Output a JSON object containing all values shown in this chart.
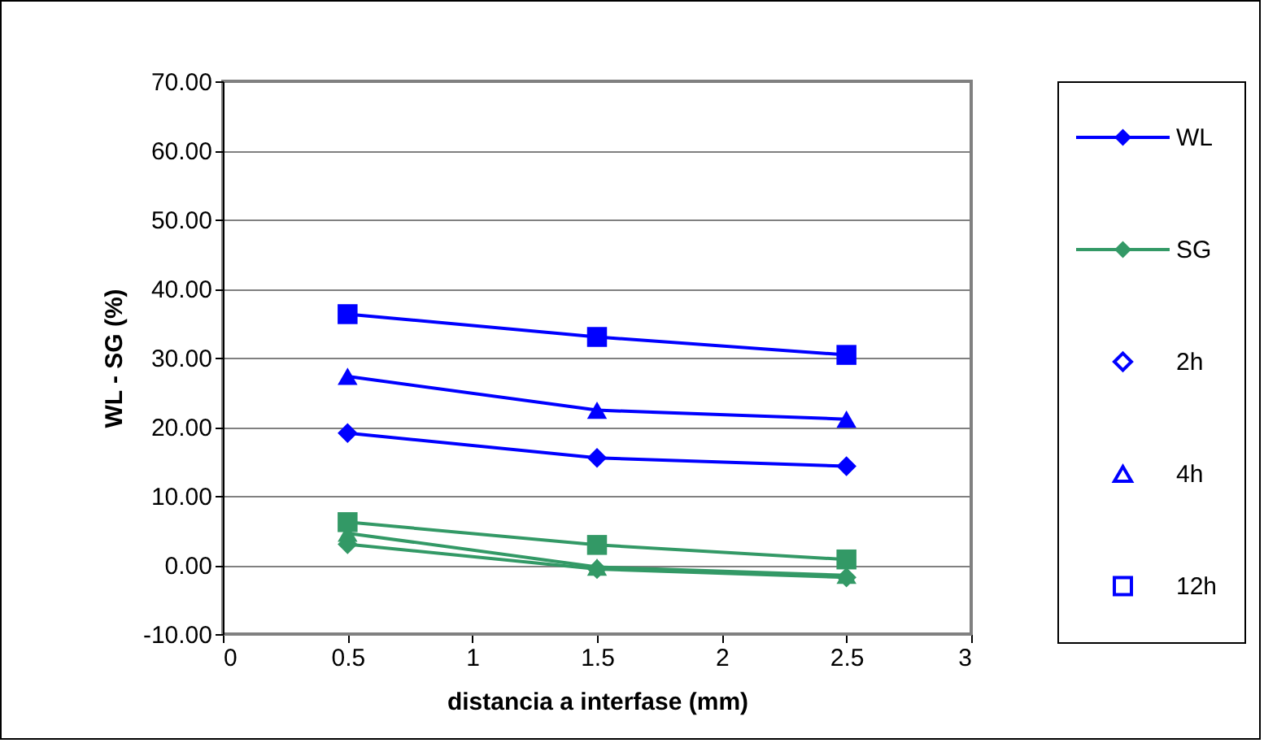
{
  "chart_data": {
    "type": "line",
    "xlabel": "distancia a interfase (mm)",
    "ylabel": "WL - SG (%)",
    "x": [
      0.5,
      1.5,
      2.5
    ],
    "series": [
      {
        "name": "WL",
        "color": "#0000ff",
        "marker": "diamond",
        "values": [
          19.1,
          15.5,
          14.3
        ]
      },
      {
        "name": "SG",
        "color": "#339966",
        "marker": "diamond",
        "values": [
          3.0,
          -0.6,
          -1.8
        ]
      },
      {
        "color": "#0000ff",
        "marker": "triangle",
        "values": [
          27.3,
          22.4,
          21.1
        ]
      },
      {
        "color": "#0000ff",
        "marker": "square",
        "values": [
          36.3,
          33.0,
          30.4
        ]
      },
      {
        "color": "#339966",
        "marker": "triangle",
        "values": [
          4.6,
          -0.3,
          -1.5
        ]
      },
      {
        "color": "#339966",
        "marker": "square",
        "values": [
          6.2,
          2.9,
          0.8
        ]
      },
      {
        "name": "2h",
        "type": "scatter",
        "color": "#0000ff",
        "marker": "diamond",
        "values": [
          null,
          null,
          null
        ]
      },
      {
        "name": "4h",
        "type": "scatter",
        "color": "#0000ff",
        "marker": "triangle",
        "values": [
          null,
          null,
          null
        ]
      },
      {
        "name": "12h",
        "type": "scatter",
        "color": "#0000ff",
        "marker": "square",
        "values": [
          null,
          null,
          null
        ]
      }
    ],
    "xlim": [
      0,
      3
    ],
    "xticks": [
      0,
      0.5,
      1,
      1.5,
      2,
      2.5,
      3
    ],
    "ylim": [
      -10,
      70
    ],
    "yticks": [
      {
        "value": -10,
        "label": "-10.00"
      },
      {
        "value": 0,
        "label": "0.00"
      },
      {
        "value": 10,
        "label": "10.00"
      },
      {
        "value": 20,
        "label": "20.00"
      },
      {
        "value": 30,
        "label": "30.00"
      },
      {
        "value": 40,
        "label": "40.00"
      },
      {
        "value": 50,
        "label": "50.00"
      },
      {
        "value": 60,
        "label": "60.00"
      },
      {
        "value": 70,
        "label": "70.00"
      }
    ],
    "grid": "y",
    "legend": "right"
  }
}
